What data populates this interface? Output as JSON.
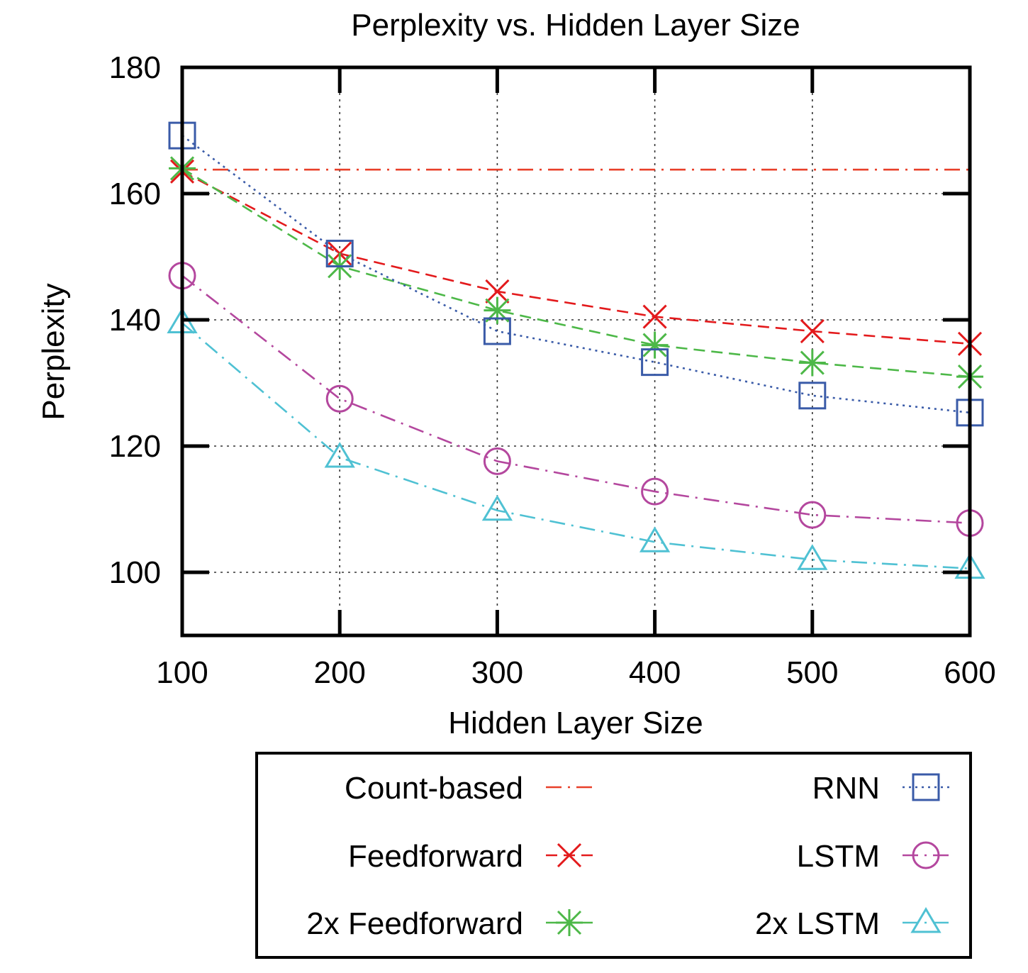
{
  "chart_data": {
    "type": "line",
    "title": "Perplexity vs. Hidden Layer Size",
    "xlabel": "Hidden Layer Size",
    "ylabel": "Perplexity",
    "x": [
      100,
      200,
      300,
      400,
      500,
      600
    ],
    "xlim": [
      100,
      600
    ],
    "ylim": [
      90,
      180
    ],
    "xticks": [
      100,
      200,
      300,
      400,
      500,
      600
    ],
    "yticks": [
      100,
      120,
      140,
      160,
      180
    ],
    "grid": true,
    "legend_placement": "bottom, below chart",
    "series": [
      {
        "name": "Count-based",
        "color": "#e8402a",
        "dash": "dash-dot",
        "marker": "none",
        "values": [
          163.8,
          163.8,
          163.8,
          163.8,
          163.8,
          163.8
        ]
      },
      {
        "name": "Feedforward",
        "color": "#e31a1c",
        "dash": "dashed",
        "marker": "x-icon",
        "values": [
          163.5,
          150.5,
          144.5,
          140.5,
          138.2,
          136.2
        ]
      },
      {
        "name": "2x Feedforward",
        "color": "#4db848",
        "dash": "dashed",
        "marker": "asterisk-icon",
        "values": [
          164,
          148.5,
          141.5,
          136,
          133.2,
          131
        ]
      },
      {
        "name": "RNN",
        "color": "#3a5ba8",
        "dash": "dotted",
        "marker": "square-icon",
        "values": [
          169.2,
          150.5,
          138.2,
          133.3,
          128,
          125.3
        ]
      },
      {
        "name": "LSTM",
        "color": "#b4479e",
        "dash": "dash-dot",
        "marker": "circle-icon",
        "values": [
          147,
          127.5,
          117.6,
          112.8,
          109.1,
          107.8
        ]
      },
      {
        "name": "2x LSTM",
        "color": "#4fc1d3",
        "dash": "dash-dot",
        "marker": "triangle-icon",
        "values": [
          139.5,
          118.2,
          109.8,
          104.8,
          102,
          100.6
        ]
      }
    ]
  }
}
